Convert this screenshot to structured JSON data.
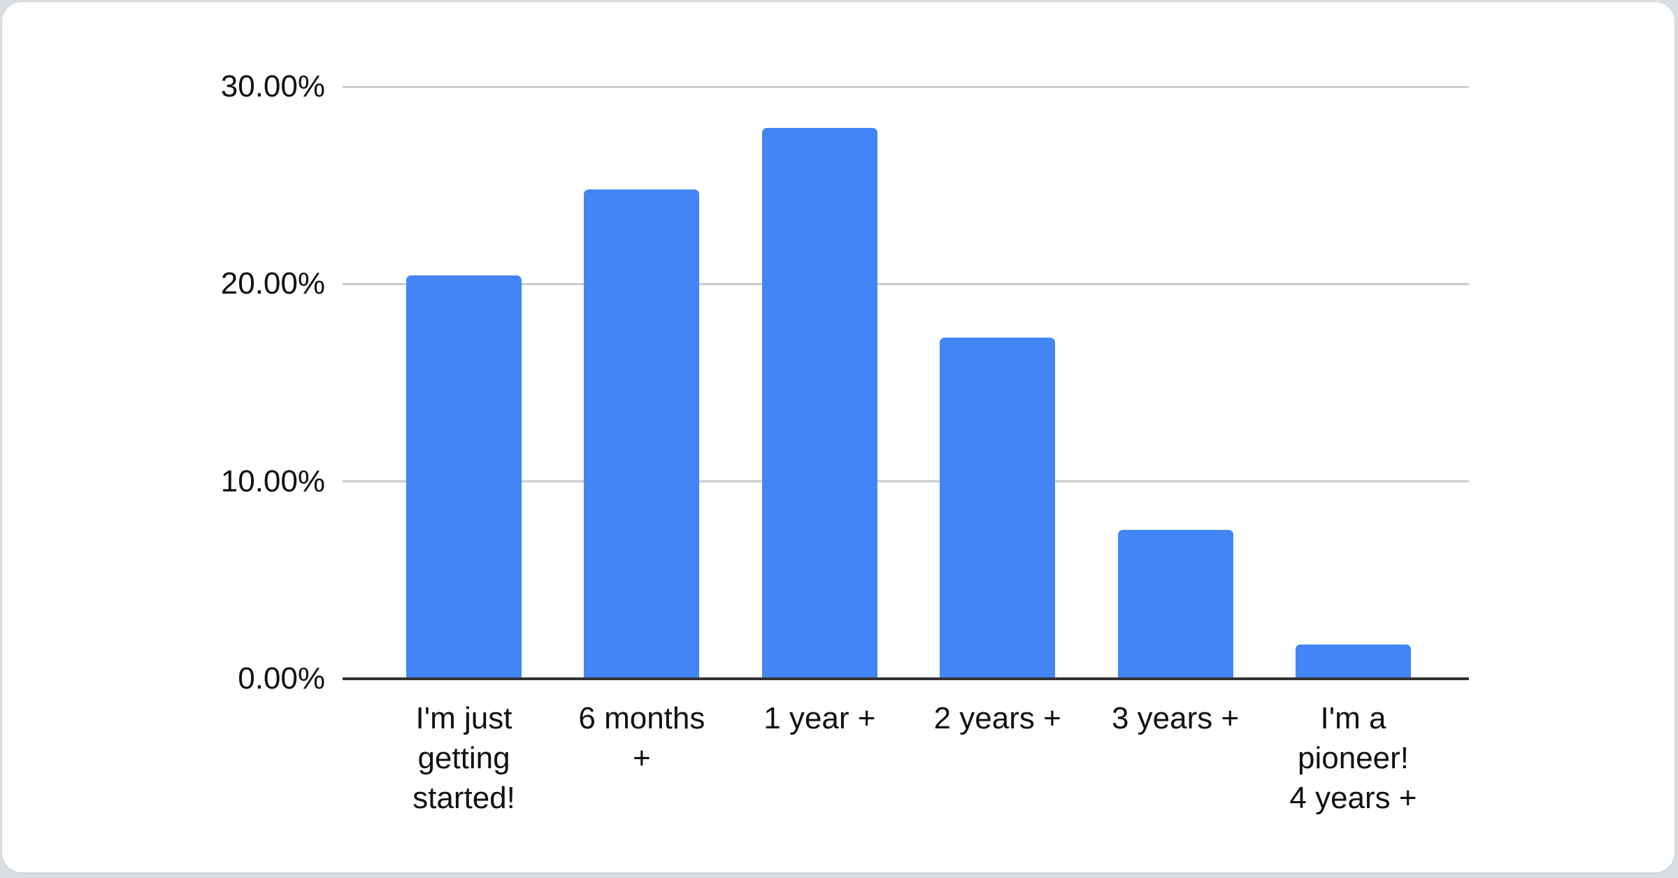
{
  "page": {
    "background_color": "#d8dee2",
    "card_color": "#ffffff"
  },
  "chart_data": {
    "type": "bar",
    "title": "",
    "xlabel": "",
    "ylabel": "",
    "legend": "none",
    "grid": true,
    "ylim": [
      0,
      30
    ],
    "y_tick_values": [
      30,
      20,
      10,
      0
    ],
    "y_tick_labels": [
      "30.00%",
      "20.00%",
      "10.00%",
      "0.00%"
    ],
    "unit": "%",
    "categories": [
      "I'm just getting started!",
      "6 months +",
      "1 year +",
      "2 years +",
      "3 years +",
      "I'm a pioneer! 4 years +"
    ],
    "category_lines": [
      [
        "I'm just",
        "getting",
        "started!"
      ],
      [
        "6 months",
        "+"
      ],
      [
        "1 year +"
      ],
      [
        "2 years +"
      ],
      [
        "3 years +"
      ],
      [
        "I'm a",
        "pioneer!",
        "4 years +"
      ]
    ],
    "values": [
      20.45,
      24.8,
      27.9,
      17.3,
      7.55,
      1.75
    ],
    "bar_color": "#4285f4",
    "gridline_color": "#cccccc",
    "axis_color": "#333333",
    "label_color": "#111111"
  }
}
